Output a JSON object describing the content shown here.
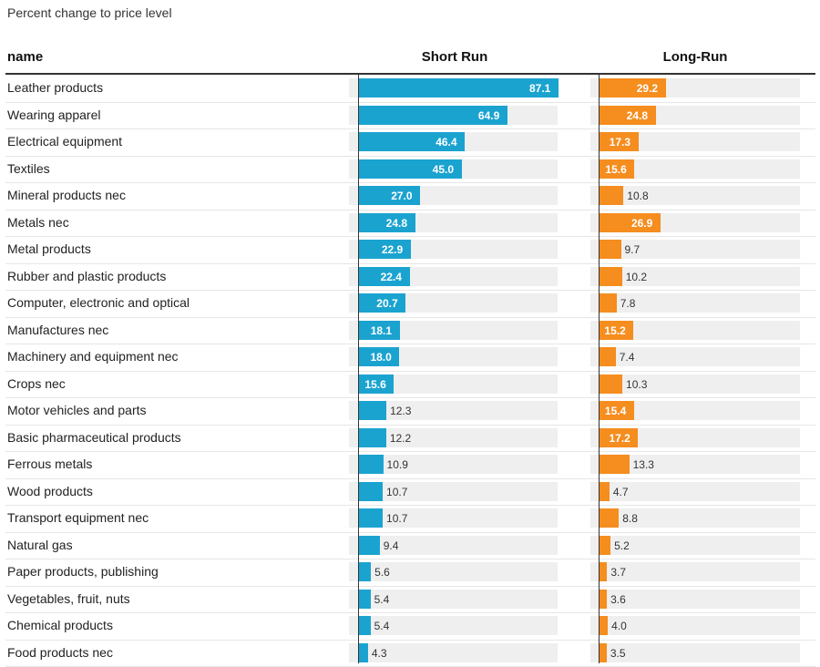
{
  "subtitle": "Percent change to price level",
  "headers": {
    "name": "name",
    "short": "Short Run",
    "long": "Long-Run"
  },
  "colors": {
    "short": "#1ba3d0",
    "long": "#f58d1f"
  },
  "chart_data": {
    "type": "bar",
    "orientation": "horizontal",
    "title": "Percent change to price level",
    "categories": [
      "Leather products",
      "Wearing apparel",
      "Electrical equipment",
      "Textiles",
      "Mineral products nec",
      "Metals nec",
      "Metal products",
      "Rubber and plastic products",
      "Computer, electronic and optical",
      "Manufactures nec",
      "Machinery and equipment nec",
      "Crops nec",
      "Motor vehicles and parts",
      "Basic pharmaceutical products",
      "Ferrous metals",
      "Wood products",
      "Transport equipment nec",
      "Natural gas",
      "Paper products, publishing",
      "Vegetables, fruit, nuts",
      "Chemical products",
      "Food products nec"
    ],
    "series": [
      {
        "name": "Short Run",
        "values": [
          87.1,
          64.9,
          46.4,
          45.0,
          27.0,
          24.8,
          22.9,
          22.4,
          20.7,
          18.1,
          18.0,
          15.6,
          12.3,
          12.2,
          10.9,
          10.7,
          10.7,
          9.4,
          5.6,
          5.4,
          5.4,
          4.3
        ]
      },
      {
        "name": "Long-Run",
        "values": [
          29.2,
          24.8,
          17.3,
          15.6,
          10.8,
          26.9,
          9.7,
          10.2,
          7.8,
          15.2,
          7.4,
          10.3,
          15.4,
          17.2,
          13.3,
          4.7,
          8.8,
          5.2,
          3.7,
          3.6,
          4.0,
          3.5
        ]
      }
    ],
    "value_format": "0.0",
    "xlim": [
      0,
      87.1
    ]
  }
}
